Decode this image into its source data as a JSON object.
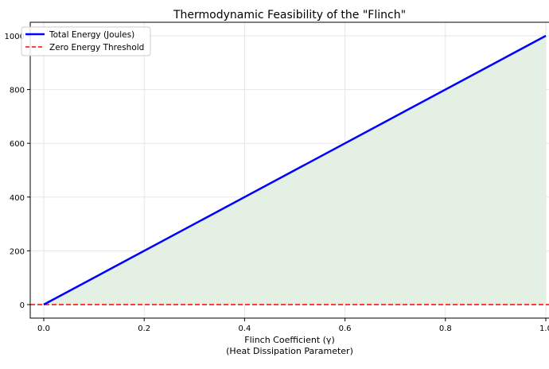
{
  "chart_data": {
    "type": "line",
    "title": "Thermodynamic Feasibility of the \"Flinch\"",
    "xlabel": "Flinch Coefficient (γ)",
    "xlabel2": "(Heat Dissipation Parameter)",
    "ylabel": "",
    "xlim": [
      -0.05,
      1.0
    ],
    "ylim": [
      -50,
      1050
    ],
    "xticks": [
      "0.0",
      "0.2",
      "0.4",
      "0.6",
      "0.8",
      "1.0"
    ],
    "yticks": [
      "0",
      "200",
      "400",
      "600",
      "800",
      "1000"
    ],
    "grid": true,
    "legend_position": "top-left",
    "series": [
      {
        "name": "Total Energy (Joules)",
        "x": [
          0,
          1
        ],
        "y": [
          0,
          1000
        ],
        "color": "#0000ff",
        "style": "solid",
        "fill_color": "#e3f0e3"
      },
      {
        "name": "Zero Energy Threshold",
        "y_constant": 0,
        "color": "#ff0000",
        "style": "dashed"
      }
    ]
  }
}
